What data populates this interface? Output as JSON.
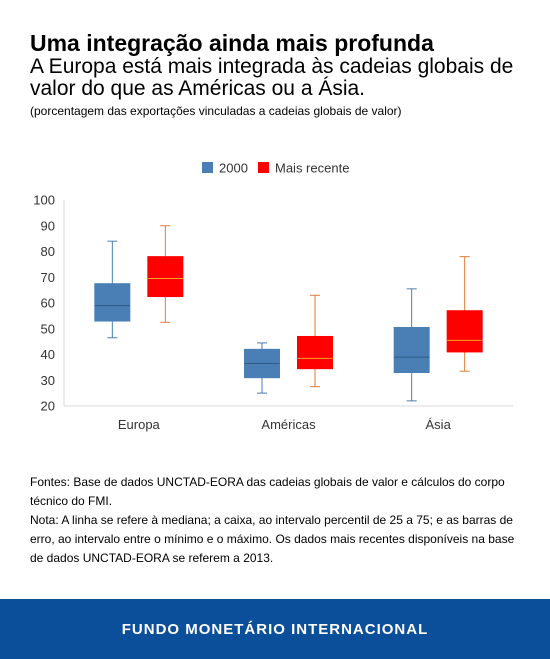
{
  "title": "Uma integração ainda mais profunda",
  "subtitle": "A Europa está mais integrada às cadeias globais de valor do que as Américas ou a Ásia.",
  "note": "(porcentagem das exportações vinculadas a cadeias globais de valor)",
  "chart_data": {
    "type": "box",
    "categories": [
      "Europa",
      "Américas",
      "Ásia"
    ],
    "series": [
      {
        "name": "2000",
        "color": "#4a7fb5",
        "stats": [
          {
            "min": 46.5,
            "q1": 53,
            "median": 59,
            "q3": 67.5,
            "max": 84
          },
          {
            "min": 25,
            "q1": 31,
            "median": 36.5,
            "q3": 42,
            "max": 44.5
          },
          {
            "min": 22,
            "q1": 33,
            "median": 39,
            "q3": 50.5,
            "max": 65.5
          }
        ]
      },
      {
        "name": "Mais recente",
        "color": "#ff0000",
        "stats": [
          {
            "min": 52.5,
            "q1": 62.5,
            "median": 69.5,
            "q3": 78,
            "max": 90
          },
          {
            "min": 27.5,
            "q1": 34.5,
            "median": 38.5,
            "q3": 47,
            "max": 63
          },
          {
            "min": 33.5,
            "q1": 41,
            "median": 45.5,
            "q3": 57,
            "max": 78
          }
        ]
      }
    ],
    "yticks": [
      20,
      30,
      40,
      50,
      60,
      70,
      80,
      90,
      100
    ],
    "ylim": [
      20,
      100
    ],
    "legend_position": "top-center",
    "grid": false
  },
  "footnotes": {
    "sources": "Fontes: Base de dados UNCTAD-EORA das cadeias globais de valor e cálculos do corpo técnico do FMI.",
    "note": "Nota: A linha se refere à mediana; a caixa, ao intervalo percentil de 25 a 75; e as barras de erro, ao intervalo entre o mínimo e o máximo. Os dados mais recentes disponíveis na base de dados UNCTAD-EORA se referem a 2013."
  },
  "footer": {
    "label": "FUNDO MONETÁRIO INTERNACIONAL",
    "color": "#0b4f9a"
  }
}
